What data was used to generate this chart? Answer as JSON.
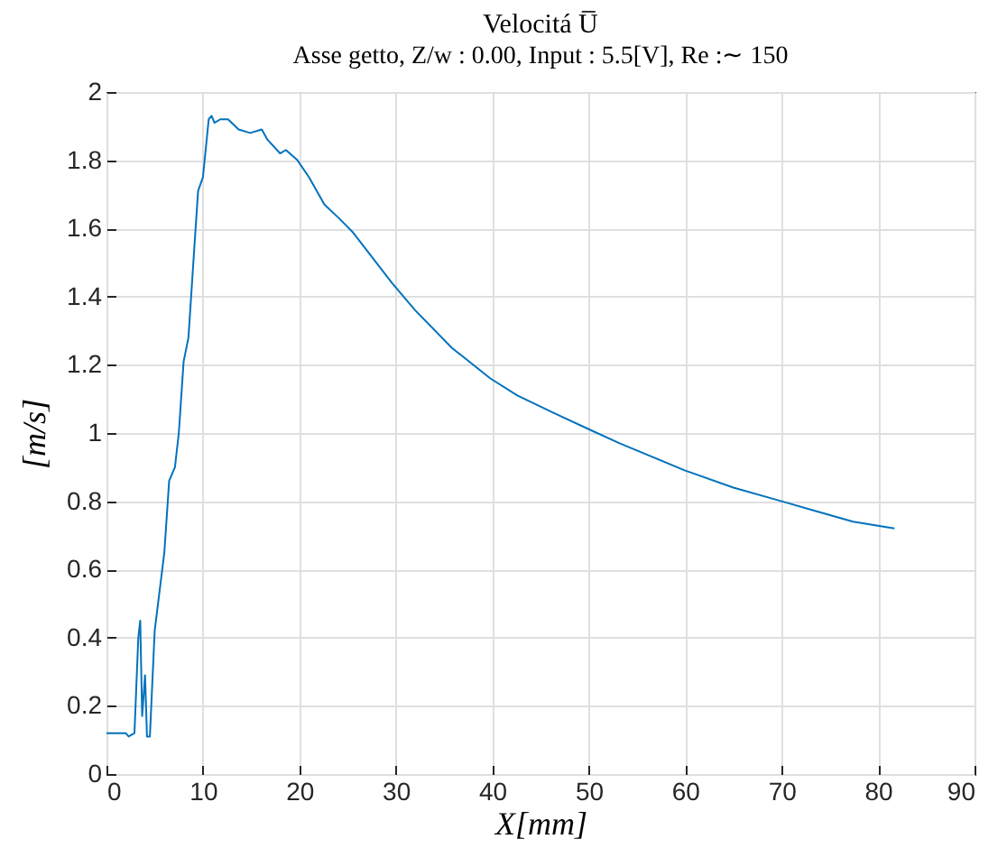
{
  "chart_data": {
    "type": "line",
    "title": "Velocitá U̅",
    "subtitle": "Asse getto, Z/w : 0.00, Input : 5.5[V], Re :∼ 150",
    "xlabel": "X[mm]",
    "ylabel": "[m/s]",
    "x": [
      0,
      2,
      2.3,
      2.9,
      3.3,
      3.5,
      3.7,
      4.0,
      4.2,
      4.5,
      5.0,
      6.0,
      6.5,
      7.1,
      7.5,
      8.0,
      8.5,
      9.1,
      9.5,
      10.0,
      10.6,
      10.9,
      11.2,
      11.8,
      12.6,
      13.7,
      14.9,
      16.1,
      16.7,
      18.0,
      18.6,
      19.8,
      21.0,
      22.6,
      24.1,
      25.5,
      29.6,
      32.0,
      35.8,
      39.8,
      42.6,
      46.3,
      50.1,
      53.2,
      60.0,
      65.0,
      70.0,
      73.7,
      77.4,
      81.7
    ],
    "series": [
      {
        "color": "#0072bd",
        "values": [
          0.12,
          0.12,
          0.11,
          0.12,
          0.4,
          0.45,
          0.17,
          0.29,
          0.11,
          0.11,
          0.42,
          0.65,
          0.86,
          0.9,
          1.0,
          1.21,
          1.28,
          1.54,
          1.71,
          1.75,
          1.92,
          1.93,
          1.91,
          1.92,
          1.92,
          1.89,
          1.88,
          1.89,
          1.86,
          1.82,
          1.83,
          1.8,
          1.75,
          1.67,
          1.63,
          1.59,
          1.44,
          1.36,
          1.25,
          1.16,
          1.11,
          1.06,
          1.01,
          0.97,
          0.89,
          0.84,
          0.8,
          0.77,
          0.74,
          0.72
        ]
      }
    ],
    "xlim": [
      0,
      90
    ],
    "xticks": [
      0,
      10,
      20,
      30,
      40,
      50,
      60,
      70,
      80,
      90
    ],
    "ylim": [
      0,
      2
    ],
    "yticks": [
      0,
      0.2,
      0.4,
      0.6,
      0.8,
      1,
      1.2,
      1.4,
      1.6,
      1.8,
      2
    ],
    "grid": true,
    "legend": false,
    "marker": "none",
    "line_style": "solid"
  }
}
